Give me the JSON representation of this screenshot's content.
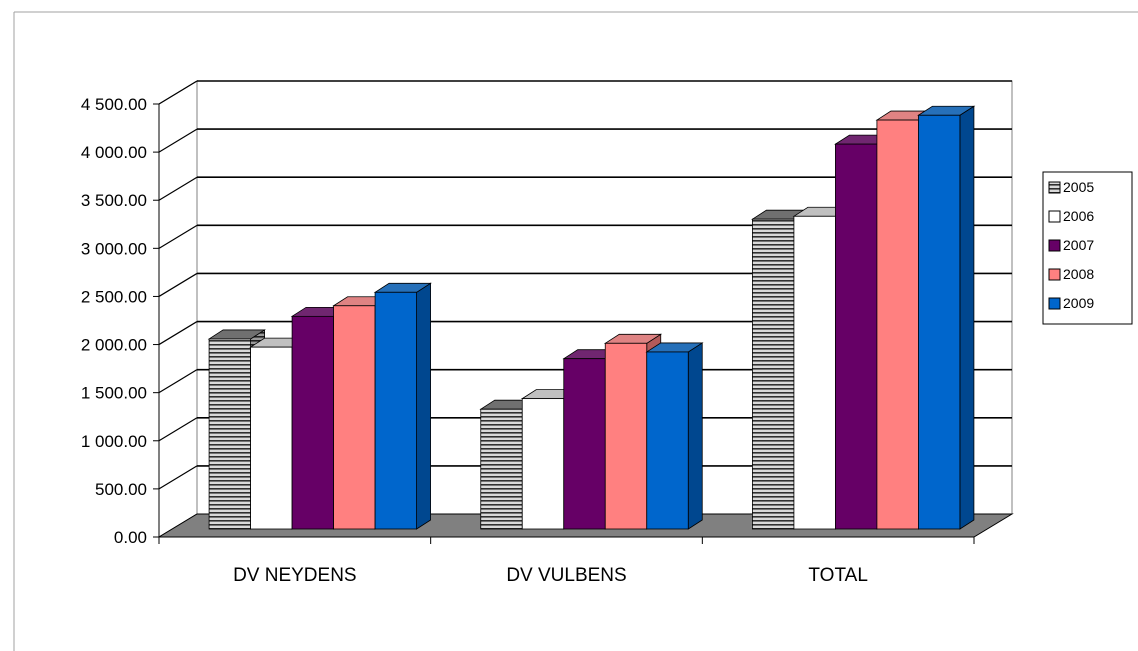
{
  "chart_data": {
    "type": "bar",
    "three_d": true,
    "categories": [
      "DV NEYDENS",
      "DV VULBENS",
      "TOTAL"
    ],
    "series": [
      {
        "name": "2005",
        "values": [
          1975,
          1245,
          3220
        ],
        "color": "#808080",
        "pattern": "horizontal-stripes"
      },
      {
        "name": "2006",
        "values": [
          1890,
          1355,
          3250
        ],
        "color": "#ffffff"
      },
      {
        "name": "2007",
        "values": [
          2210,
          1770,
          4000
        ],
        "color": "#660066"
      },
      {
        "name": "2008",
        "values": [
          2320,
          1930,
          4250
        ],
        "color": "#ff8080"
      },
      {
        "name": "2009",
        "values": [
          2460,
          1840,
          4300
        ],
        "color": "#0066cc"
      }
    ],
    "y_ticks": [
      "0.00",
      "500.00",
      "1 000.00",
      "1 500.00",
      "2 000.00",
      "2 500.00",
      "3 000.00",
      "3 500.00",
      "4 000.00",
      "4 500.00"
    ],
    "ylim": [
      0,
      4500
    ],
    "title": "",
    "xlabel": "",
    "ylabel": "",
    "grid": true,
    "legend_position": "right"
  }
}
